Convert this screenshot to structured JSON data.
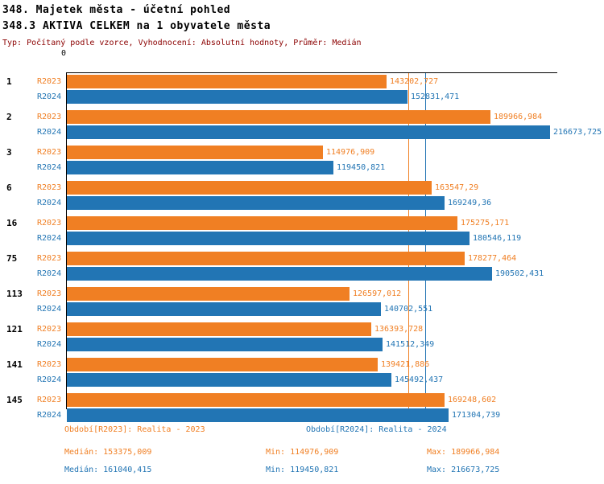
{
  "chart_data": {
    "type": "bar",
    "orientation": "horizontal",
    "title": "348. Majetek města - účetní pohled",
    "subtitle": "348.3 AKTIVA CELKEM na 1 obyvatele města",
    "info": "Typ: Počítaný podle vzorce, Vyhodnocení: Absolutní hodnoty, Průměr: Medián",
    "zero_label": "0",
    "xlim": [
      0,
      216673.725
    ],
    "grid": false,
    "legend_position": "bottom",
    "categories": [
      "1",
      "2",
      "3",
      "6",
      "16",
      "75",
      "113",
      "121",
      "141",
      "145"
    ],
    "series": [
      {
        "name": "R2023",
        "color": "#F07F23",
        "period_label": "Období[R2023]: Realita - 2023",
        "values": [
          143202.727,
          189966.984,
          114976.909,
          163547.29,
          175275.171,
          178277.464,
          126597.012,
          136393.728,
          139421.886,
          169248.602
        ],
        "value_labels": [
          "143202,727",
          "189966,984",
          "114976,909",
          "163547,29",
          "175275,171",
          "178277,464",
          "126597,012",
          "136393,728",
          "139421,886",
          "169248,602"
        ],
        "median": 153375.009,
        "stats": {
          "median_label": "Medián: 153375,009",
          "min_label": "Min: 114976,909",
          "max_label": "Max: 189966,984"
        }
      },
      {
        "name": "R2024",
        "color": "#2275B4",
        "period_label": "Období[R2024]: Realita - 2024",
        "values": [
          152831.471,
          216673.725,
          119450.821,
          169249.36,
          180546.119,
          190502.431,
          140702.551,
          141512.349,
          145492.437,
          171304.739
        ],
        "value_labels": [
          "152831,471",
          "216673,725",
          "119450,821",
          "169249,36",
          "180546,119",
          "190502,431",
          "140702,551",
          "141512,349",
          "145492,437",
          "171304,739"
        ],
        "median": 161040.415,
        "stats": {
          "median_label": "Medián: 161040,415",
          "min_label": "Min: 119450,821",
          "max_label": "Max: 216673,725"
        }
      }
    ]
  }
}
